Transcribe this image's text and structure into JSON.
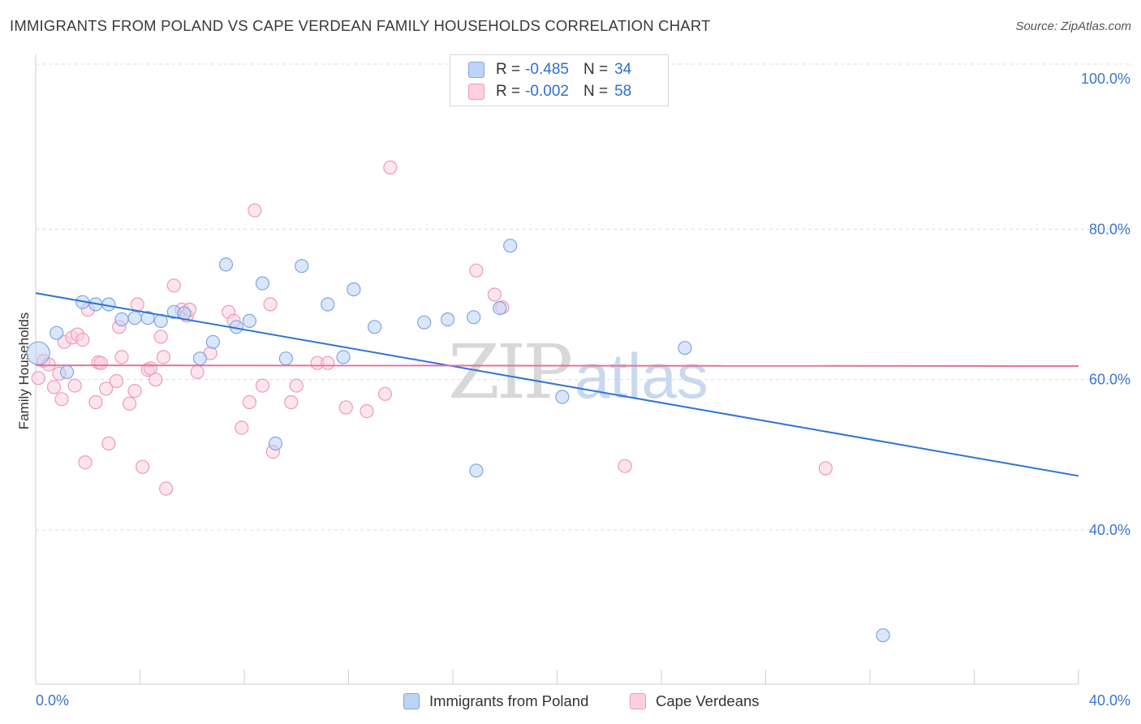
{
  "title": "IMMIGRANTS FROM POLAND VS CAPE VERDEAN FAMILY HOUSEHOLDS CORRELATION CHART",
  "source": "Source: ZipAtlas.com",
  "watermark": {
    "zip": "ZIP",
    "atlas": "atlas"
  },
  "colors": {
    "blue_fill": "#bcd4f6",
    "blue_stroke": "#7ea6e3",
    "blue_line": "#2f74d3",
    "pink_fill": "#fcd0de",
    "pink_stroke": "#ee9ab6",
    "pink_line": "#e5729a",
    "axis_text": "#3a75cf"
  },
  "stats": [
    {
      "r_label": "R =",
      "r_value": "-0.485",
      "n_label": "N =",
      "n_value": "34",
      "color": "blue"
    },
    {
      "r_label": "R =",
      "r_value": "-0.002",
      "n_label": "N =",
      "n_value": "58",
      "color": "pink"
    }
  ],
  "chart_data": {
    "type": "scatter",
    "title": "IMMIGRANTS FROM POLAND VS CAPE VERDEAN FAMILY HOUSEHOLDS CORRELATION CHART",
    "xlabel": "",
    "ylabel": "Family Households",
    "xlim": [
      0,
      40
    ],
    "ylim": [
      20,
      104
    ],
    "x_tick_labels": [
      "0.0%",
      "40.0%"
    ],
    "y_ticks": [
      40,
      60,
      80,
      100
    ],
    "y_tick_labels": [
      "40.0%",
      "60.0%",
      "80.0%",
      "100.0%"
    ],
    "grid": true,
    "legend_position": "bottom",
    "series": [
      {
        "name": "Immigrants from Poland",
        "color": "blue",
        "trend": {
          "x": [
            0,
            40
          ],
          "y": [
            71.5,
            47.2
          ]
        },
        "points": [
          [
            0.1,
            63.5
          ],
          [
            0.8,
            66.2
          ],
          [
            1.2,
            61.0
          ],
          [
            1.8,
            70.3
          ],
          [
            2.3,
            70.0
          ],
          [
            2.8,
            70.0
          ],
          [
            3.3,
            68.0
          ],
          [
            3.8,
            68.2
          ],
          [
            4.3,
            68.2
          ],
          [
            4.8,
            67.8
          ],
          [
            5.3,
            69.0
          ],
          [
            5.7,
            68.8
          ],
          [
            6.3,
            62.8
          ],
          [
            6.8,
            65.0
          ],
          [
            7.3,
            75.3
          ],
          [
            7.7,
            67.0
          ],
          [
            8.2,
            67.8
          ],
          [
            8.7,
            72.8
          ],
          [
            9.2,
            51.5
          ],
          [
            9.6,
            62.8
          ],
          [
            10.2,
            75.1
          ],
          [
            11.2,
            70.0
          ],
          [
            11.8,
            63.0
          ],
          [
            12.2,
            72.0
          ],
          [
            13.0,
            67.0
          ],
          [
            14.9,
            67.6
          ],
          [
            15.8,
            68.0
          ],
          [
            16.8,
            68.3
          ],
          [
            16.9,
            47.9
          ],
          [
            17.8,
            69.5
          ],
          [
            18.2,
            77.8
          ],
          [
            20.2,
            57.7
          ],
          [
            24.9,
            64.2
          ],
          [
            32.5,
            26.0
          ]
        ]
      },
      {
        "name": "Cape Verdeans",
        "color": "pink",
        "trend": {
          "x": [
            0,
            40
          ],
          "y": [
            61.9,
            61.8
          ]
        },
        "points": [
          [
            0.1,
            60.2
          ],
          [
            0.3,
            62.5
          ],
          [
            0.5,
            62.0
          ],
          [
            0.7,
            59.0
          ],
          [
            0.9,
            60.8
          ],
          [
            1.0,
            57.4
          ],
          [
            1.1,
            65.0
          ],
          [
            1.4,
            65.6
          ],
          [
            1.5,
            59.2
          ],
          [
            1.6,
            66.0
          ],
          [
            1.8,
            65.3
          ],
          [
            1.9,
            49.0
          ],
          [
            2.0,
            69.3
          ],
          [
            2.3,
            57.0
          ],
          [
            2.4,
            62.3
          ],
          [
            2.5,
            62.2
          ],
          [
            2.7,
            58.8
          ],
          [
            2.8,
            51.5
          ],
          [
            3.1,
            59.8
          ],
          [
            3.2,
            67.0
          ],
          [
            3.3,
            63.0
          ],
          [
            3.6,
            56.8
          ],
          [
            3.8,
            58.5
          ],
          [
            3.9,
            70.0
          ],
          [
            4.1,
            48.4
          ],
          [
            4.3,
            61.3
          ],
          [
            4.4,
            61.5
          ],
          [
            4.6,
            60.0
          ],
          [
            4.8,
            65.7
          ],
          [
            4.9,
            63.0
          ],
          [
            5.0,
            45.5
          ],
          [
            5.3,
            72.5
          ],
          [
            5.6,
            69.3
          ],
          [
            5.8,
            68.5
          ],
          [
            5.9,
            69.3
          ],
          [
            6.2,
            61.0
          ],
          [
            6.7,
            63.5
          ],
          [
            7.4,
            69.0
          ],
          [
            7.6,
            67.8
          ],
          [
            7.9,
            53.6
          ],
          [
            8.2,
            57.0
          ],
          [
            8.4,
            82.5
          ],
          [
            8.7,
            59.2
          ],
          [
            9.0,
            70.0
          ],
          [
            9.1,
            50.4
          ],
          [
            9.8,
            57.0
          ],
          [
            10.0,
            59.2
          ],
          [
            10.8,
            62.2
          ],
          [
            11.2,
            62.2
          ],
          [
            11.9,
            56.3
          ],
          [
            12.7,
            55.8
          ],
          [
            13.4,
            58.1
          ],
          [
            13.6,
            88.2
          ],
          [
            16.9,
            74.5
          ],
          [
            17.6,
            71.3
          ],
          [
            17.9,
            69.6
          ],
          [
            22.6,
            48.5
          ],
          [
            30.3,
            48.2
          ]
        ]
      }
    ]
  }
}
